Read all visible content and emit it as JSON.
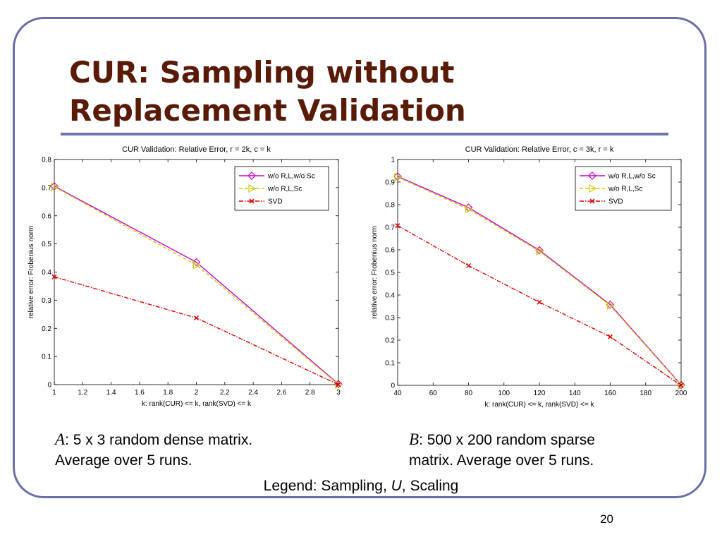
{
  "slide": {
    "title_line1": "CUR: Sampling without",
    "title_line2": "Replacement Validation",
    "caption_a": {
      "letter": "A",
      "line1": ": 5 x 3 random dense matrix.",
      "line2": "Average over 5 runs."
    },
    "caption_b": {
      "letter": "B",
      "line1": ": 500 x 200 random sparse",
      "line2": "matrix.  Average over 5 runs."
    },
    "legend_note": {
      "prefix": "Legend: Sampling, ",
      "u": "U",
      "suffix": ", Scaling"
    },
    "page_number": "20"
  },
  "colors": {
    "series1": "#cc00cc",
    "series2": "#cccc00",
    "series3": "#e00000",
    "frame": "#6b6fa8",
    "title": "#5a1a08"
  },
  "chart_data": [
    {
      "type": "line",
      "title": "CUR Validation: Relative Error, r = 2k, c = k",
      "xlabel": "k: rank(CUR) <= k, rank(SVD) <= k",
      "ylabel": "relative error: Frobenius norm",
      "xlim": [
        1,
        3
      ],
      "ylim": [
        0,
        0.8
      ],
      "xticks": [
        "1",
        "1.2",
        "1.4",
        "1.6",
        "1.8",
        "2",
        "2.2",
        "2.4",
        "2.6",
        "2.8",
        "3"
      ],
      "yticks": [
        "0",
        "0.1",
        "0.2",
        "0.3",
        "0.4",
        "0.5",
        "0.6",
        "0.7",
        "0.8"
      ],
      "legend_position": "top-right",
      "x": [
        1,
        2,
        3
      ],
      "series": [
        {
          "name": "w/o R,L,w/o Sc",
          "values": [
            0.705,
            0.435,
            0.002
          ],
          "color": "#cc00cc",
          "line": "solid",
          "marker": "diamond"
        },
        {
          "name": "w/o R,L,Sc",
          "values": [
            0.703,
            0.425,
            0.0
          ],
          "color": "#cccc00",
          "line": "dashed",
          "marker": "triangle-right"
        },
        {
          "name": "SVD",
          "values": [
            0.383,
            0.237,
            0.0
          ],
          "color": "#e00000",
          "line": "dashdot",
          "marker": "x"
        }
      ]
    },
    {
      "type": "line",
      "title": "CUR Validation: Relative Error, c = 3k, r = k",
      "xlabel": "k: rank(CUR) <= k, rank(SVD) <= k",
      "ylabel": "relative error: Frobenius norm",
      "xlim": [
        40,
        200
      ],
      "ylim": [
        0,
        1
      ],
      "xticks": [
        "40",
        "60",
        "80",
        "100",
        "120",
        "140",
        "160",
        "180",
        "200"
      ],
      "yticks": [
        "0",
        "0.1",
        "0.2",
        "0.3",
        "0.4",
        "0.5",
        "0.6",
        "0.7",
        "0.8",
        "0.9",
        "1"
      ],
      "legend_position": "top-right",
      "x": [
        40,
        80,
        120,
        160,
        200
      ],
      "series": [
        {
          "name": "w/o R,L,w/o Sc",
          "values": [
            0.925,
            0.787,
            0.598,
            0.357,
            0.002
          ],
          "color": "#cc00cc",
          "line": "solid",
          "marker": "diamond"
        },
        {
          "name": "w/o R,L,Sc",
          "values": [
            0.922,
            0.78,
            0.594,
            0.353,
            0.0
          ],
          "color": "#cccc00",
          "line": "dashed",
          "marker": "triangle-right"
        },
        {
          "name": "SVD",
          "values": [
            0.707,
            0.53,
            0.368,
            0.215,
            0.0
          ],
          "color": "#e00000",
          "line": "dashdot",
          "marker": "x"
        }
      ]
    }
  ]
}
